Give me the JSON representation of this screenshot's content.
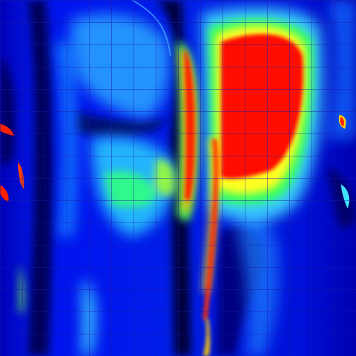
{
  "image": {
    "kind": "false-color heatmap rendering",
    "description_visible_text": "",
    "colormap": {
      "low": "#000030",
      "deep_blue": "#0000cc",
      "blue": "#0030ff",
      "light_blue": "#2aa8ff",
      "cyan": "#55e8ff",
      "green": "#30ff60",
      "yellow": "#ffff20",
      "orange": "#ff9a00",
      "high": "#ff0a00"
    },
    "grid": {
      "visible": true,
      "line_color": "#1a1aa6"
    }
  }
}
